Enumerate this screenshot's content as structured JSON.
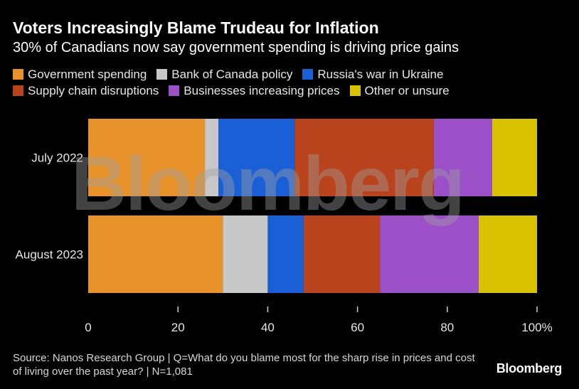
{
  "header": {
    "title": "Voters Increasingly Blame Trudeau for Inflation",
    "subtitle": "30% of Canadians now say government spending is driving price gains"
  },
  "legend": {
    "rows": [
      [
        {
          "label": "Government spending",
          "color": "#e8922c"
        },
        {
          "label": "Bank of Canada policy",
          "color": "#c8c8c8"
        },
        {
          "label": "Russia's war in Ukraine",
          "color": "#1b5fd6"
        }
      ],
      [
        {
          "label": "Supply chain disruptions",
          "color": "#b8431c"
        },
        {
          "label": "Businesses increasing prices",
          "color": "#9b50c8"
        },
        {
          "label": "Other or unsure",
          "color": "#d9c200"
        }
      ]
    ]
  },
  "chart_data": {
    "type": "bar",
    "orientation": "horizontal",
    "stacked": true,
    "categories": [
      "July 2022",
      "August 2023"
    ],
    "series": [
      {
        "name": "Government spending",
        "color": "#e8922c",
        "values": [
          26,
          30
        ]
      },
      {
        "name": "Bank of Canada policy",
        "color": "#c8c8c8",
        "values": [
          3,
          10
        ]
      },
      {
        "name": "Russia's war in Ukraine",
        "color": "#1b5fd6",
        "values": [
          17,
          8
        ]
      },
      {
        "name": "Supply chain disruptions",
        "color": "#b8431c",
        "values": [
          31,
          17
        ]
      },
      {
        "name": "Businesses increasing prices",
        "color": "#9b50c8",
        "values": [
          13,
          22
        ]
      },
      {
        "name": "Other or unsure",
        "color": "#d9c200",
        "values": [
          10,
          13
        ]
      }
    ],
    "xlim": [
      0,
      100
    ],
    "xticks": [
      0,
      20,
      40,
      60,
      80,
      100
    ],
    "xtick_labels": [
      "0",
      "20",
      "40",
      "60",
      "80",
      "100%"
    ],
    "legend_position": "top",
    "grid": false
  },
  "footer": {
    "source": "Source: Nanos Research Group | Q=What do you blame most for the sharp rise in prices and cost of living over the past year? | N=1,081",
    "brand": "Bloomberg"
  },
  "watermark": "Bloomberg"
}
